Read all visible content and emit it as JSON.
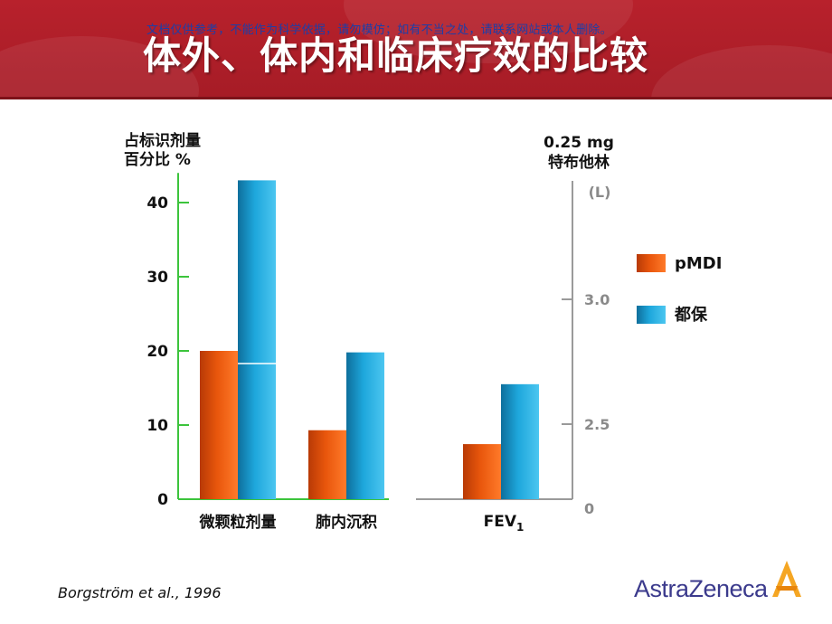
{
  "header": {
    "watermark": "文档仅供参考，不能作为科学依据，请勿模仿；如有不当之处，请联系网站或本人删除。",
    "title": "体外、体内和临床疗效的比较"
  },
  "colors": {
    "pMDI": "#e8560c",
    "turbuhaler": "#1ea7dc",
    "left_axis": "#3cc43c",
    "right_axis": "#9a9a9a",
    "banner": "#b8212c"
  },
  "chart_data": {
    "type": "bar",
    "left_axis": {
      "label_lines": [
        "占标识剂量",
        "百分比 %"
      ],
      "ticks": [
        0,
        10,
        20,
        30,
        40
      ],
      "ylim": [
        0,
        44
      ]
    },
    "right_axis": {
      "label_lines": [
        "0.25 mg",
        "特布他林"
      ],
      "unit": "(L)",
      "ticks": [
        "0",
        "2.5",
        "3.0"
      ],
      "ylim": [
        2.0,
        3.3
      ]
    },
    "categories": [
      "微颗粒剂量",
      "肺内沉积"
    ],
    "series": [
      {
        "name": "pMDI",
        "values": [
          20,
          9.3
        ]
      },
      {
        "name": "都保",
        "values": [
          43,
          19.8
        ]
      }
    ],
    "fev1": {
      "label": "FEV",
      "subscript": "1",
      "values": [
        2.42,
        2.66
      ]
    },
    "legend": {
      "placement": "right",
      "entries": [
        "pMDI",
        "都保"
      ]
    }
  },
  "citation": "Borgström et al., 1996",
  "logo": {
    "text": "AstraZeneca",
    "mark": "astrazeneca-logo-icon"
  }
}
